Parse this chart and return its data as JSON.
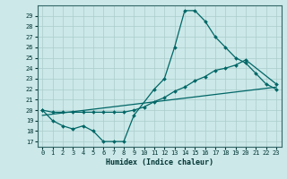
{
  "xlabel": "Humidex (Indice chaleur)",
  "background_color": "#cce8e8",
  "grid_color": "#aacccc",
  "line_color": "#006666",
  "xlim": [
    -0.5,
    23.5
  ],
  "ylim": [
    16.5,
    30.0
  ],
  "xticks": [
    0,
    1,
    2,
    3,
    4,
    5,
    6,
    7,
    8,
    9,
    10,
    11,
    12,
    13,
    14,
    15,
    16,
    17,
    18,
    19,
    20,
    21,
    22,
    23
  ],
  "yticks": [
    17,
    18,
    19,
    20,
    21,
    22,
    23,
    24,
    25,
    26,
    27,
    28,
    29
  ],
  "curve1_x": [
    0,
    1,
    2,
    3,
    4,
    5,
    6,
    7,
    8,
    9,
    11,
    12,
    13,
    14,
    15,
    16,
    17,
    18,
    19,
    20,
    21,
    22,
    23
  ],
  "curve1_y": [
    20,
    19,
    18.5,
    18.2,
    18.5,
    18,
    17,
    17,
    17,
    19.5,
    22,
    23,
    26,
    29.5,
    29.5,
    28.5,
    27,
    26,
    25,
    24.5,
    23.5,
    22.5,
    22
  ],
  "curve2_x": [
    0,
    1,
    2,
    3,
    4,
    5,
    6,
    7,
    8,
    9,
    10,
    11,
    12,
    13,
    14,
    15,
    16,
    17,
    18,
    19,
    20,
    23
  ],
  "curve2_y": [
    20,
    19.8,
    19.8,
    19.8,
    19.8,
    19.8,
    19.8,
    19.8,
    19.8,
    20,
    20.3,
    20.8,
    21.2,
    21.8,
    22.2,
    22.8,
    23.2,
    23.8,
    24.0,
    24.3,
    24.8,
    22.5
  ],
  "curve3_x": [
    0,
    23
  ],
  "curve3_y": [
    19.5,
    22.2
  ]
}
